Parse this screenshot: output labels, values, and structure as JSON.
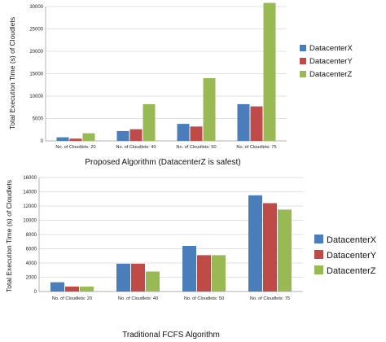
{
  "colors": {
    "DatacenterX": "#4a7ebb",
    "DatacenterY": "#be4b48",
    "DatacenterZ": "#98b954"
  },
  "chart_data": [
    {
      "type": "bar",
      "title": "Proposed Algorithm (DatacenterZ is safest)",
      "ylabel": "Total Execution Time (s) of Cloudlets",
      "xlabel": "",
      "categories": [
        "No. of Cloudlets: 20",
        "No. of Cloudlets: 40",
        "No. of Cloudlets: 50",
        "No. of Cloudlets: 75"
      ],
      "yticks": [
        "0",
        "5000",
        "10000",
        "15000",
        "20000",
        "25000",
        "30000"
      ],
      "ylim": [
        0,
        30000
      ],
      "grid": true,
      "legend": "right",
      "series": [
        {
          "name": "DatacenterX",
          "values": [
            800,
            2200,
            3800,
            8200
          ]
        },
        {
          "name": "DatacenterY",
          "values": [
            500,
            2600,
            3200,
            7700
          ]
        },
        {
          "name": "DatacenterZ",
          "values": [
            1700,
            8200,
            14000,
            30800
          ]
        }
      ]
    },
    {
      "type": "bar",
      "title": "Traditional FCFS Algorithm",
      "ylabel": "Total Execution Time (s) of Cloudlets",
      "xlabel": "",
      "categories": [
        "No. of Cloudlets: 20",
        "No. of Cloudlets: 40",
        "No. of Cloudlets: 50",
        "No. of Cloudlets: 75"
      ],
      "yticks": [
        "0",
        "2000",
        "4000",
        "6000",
        "8000",
        "10000",
        "12000",
        "14000",
        "16000"
      ],
      "ylim": [
        0,
        16000
      ],
      "grid": true,
      "legend": "right",
      "series": [
        {
          "name": "DatacenterX",
          "values": [
            1300,
            3900,
            6400,
            13500
          ]
        },
        {
          "name": "DatacenterY",
          "values": [
            700,
            3900,
            5100,
            12400
          ]
        },
        {
          "name": "DatacenterZ",
          "values": [
            700,
            2800,
            5100,
            11500
          ]
        }
      ]
    }
  ]
}
